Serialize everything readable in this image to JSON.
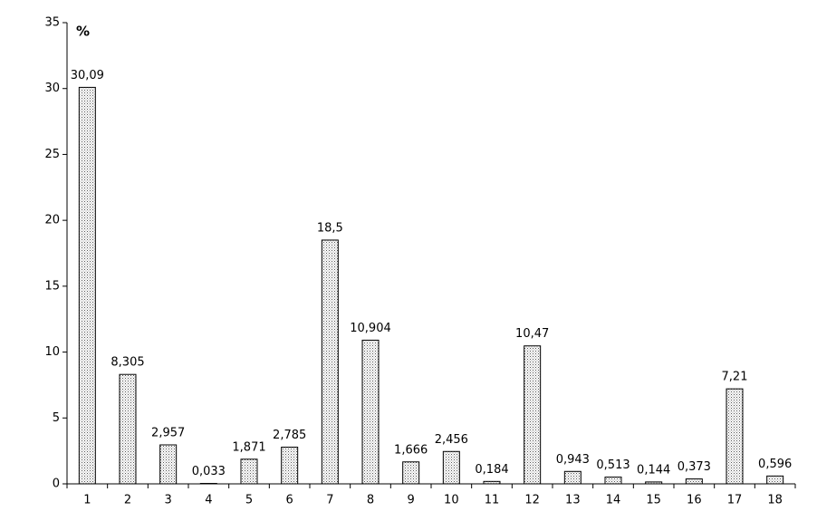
{
  "chart_data": {
    "type": "bar",
    "y_label": "%",
    "categories": [
      "1",
      "2",
      "3",
      "4",
      "5",
      "6",
      "7",
      "8",
      "9",
      "10",
      "11",
      "12",
      "13",
      "14",
      "15",
      "16",
      "17",
      "18"
    ],
    "values": [
      30.09,
      8.305,
      2.957,
      0.033,
      1.871,
      2.785,
      18.5,
      10.904,
      1.666,
      2.456,
      0.184,
      10.47,
      0.943,
      0.513,
      0.144,
      0.373,
      7.21,
      0.596
    ],
    "value_labels": [
      "30,09",
      "8,305",
      "2,957",
      "0,033",
      "1,871",
      "2,785",
      "18,5",
      "10,904",
      "1,666",
      "2,456",
      "0,184",
      "10,47",
      "0,943",
      "0,513",
      "0,144",
      "0,373",
      "7,21",
      "0,596"
    ],
    "color": "#ffffff",
    "ylim": [
      0,
      35
    ],
    "yticks": [
      0,
      5,
      10,
      15,
      20,
      25,
      30,
      35
    ],
    "grid": false
  }
}
